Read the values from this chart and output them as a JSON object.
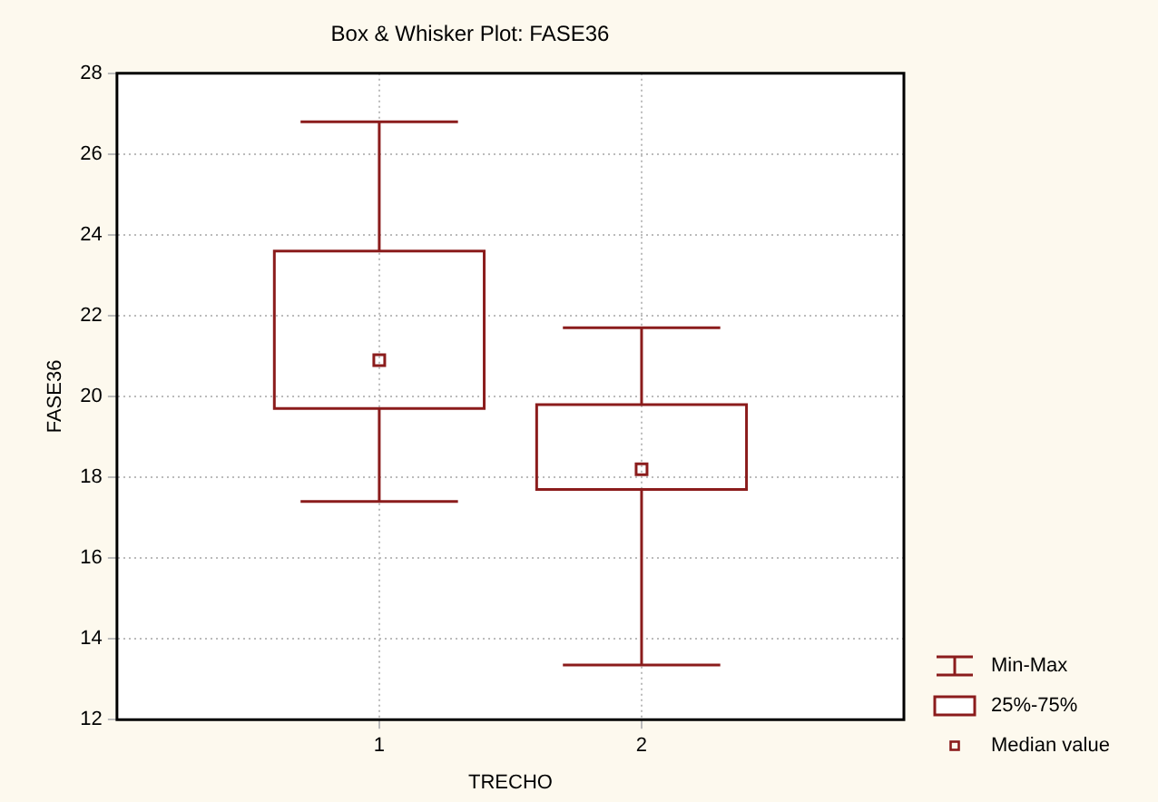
{
  "chart_data": {
    "type": "box",
    "title": "Box & Whisker Plot: FASE36",
    "xlabel": "TRECHO",
    "ylabel": "FASE36",
    "categories": [
      "1",
      "2"
    ],
    "color": "#8b1c1c",
    "boxes": [
      {
        "low": 17.4,
        "q1": 19.7,
        "median": 20.9,
        "q3": 23.6,
        "high": 26.8
      },
      {
        "low": 13.35,
        "q1": 17.7,
        "median": 18.2,
        "q3": 19.8,
        "high": 21.7
      }
    ],
    "ylim": [
      12,
      28
    ],
    "yticks": [
      12,
      14,
      16,
      18,
      20,
      22,
      24,
      26,
      28
    ],
    "grid": true,
    "marker": "square",
    "annotations": [
      "Min-Max",
      "25%-75%",
      "Median value"
    ]
  }
}
